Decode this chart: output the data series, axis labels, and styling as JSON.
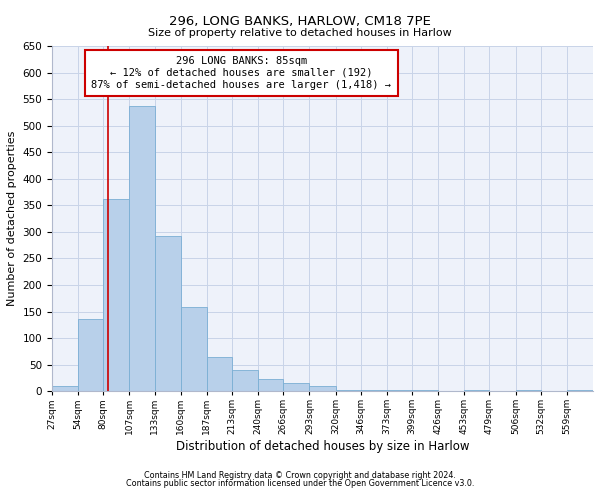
{
  "title1": "296, LONG BANKS, HARLOW, CM18 7PE",
  "title2": "Size of property relative to detached houses in Harlow",
  "xlabel": "Distribution of detached houses by size in Harlow",
  "ylabel": "Number of detached properties",
  "footnote1": "Contains HM Land Registry data © Crown copyright and database right 2024.",
  "footnote2": "Contains public sector information licensed under the Open Government Licence v3.0.",
  "annotation_line1": "296 LONG BANKS: 85sqm",
  "annotation_line2": "← 12% of detached houses are smaller (192)",
  "annotation_line3": "87% of semi-detached houses are larger (1,418) →",
  "bar_color": "#b8d0ea",
  "bar_edge_color": "#7aaed4",
  "redline_color": "#cc0000",
  "annotation_box_edgecolor": "#cc0000",
  "grid_color": "#c8d4e8",
  "background_color": "#eef2fa",
  "bin_labels": [
    "27sqm",
    "54sqm",
    "80sqm",
    "107sqm",
    "133sqm",
    "160sqm",
    "187sqm",
    "213sqm",
    "240sqm",
    "266sqm",
    "293sqm",
    "320sqm",
    "346sqm",
    "373sqm",
    "399sqm",
    "426sqm",
    "453sqm",
    "479sqm",
    "506sqm",
    "532sqm",
    "559sqm"
  ],
  "bar_heights": [
    10,
    135,
    362,
    537,
    292,
    158,
    65,
    40,
    22,
    15,
    10,
    2,
    2,
    2,
    2,
    0,
    2,
    0,
    2,
    0,
    2
  ],
  "bin_edges": [
    27,
    54,
    80,
    107,
    133,
    160,
    187,
    213,
    240,
    266,
    293,
    320,
    346,
    373,
    399,
    426,
    453,
    479,
    506,
    532,
    559,
    586
  ],
  "redline_x": 85,
  "ylim": [
    0,
    650
  ],
  "yticks": [
    0,
    50,
    100,
    150,
    200,
    250,
    300,
    350,
    400,
    450,
    500,
    550,
    600,
    650
  ]
}
